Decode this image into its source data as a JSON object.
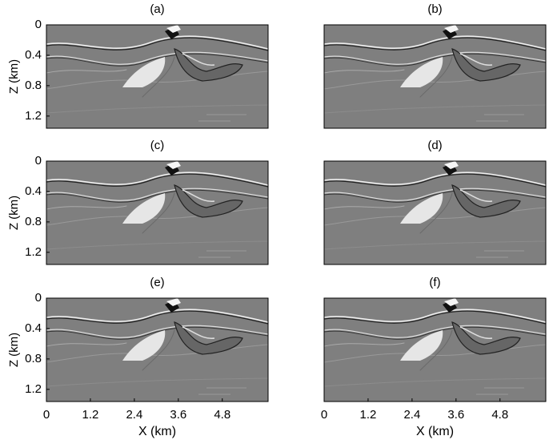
{
  "chart_data": [
    {
      "type": "image",
      "title": "(a)",
      "ylabel": "Z (km)",
      "ylim": [
        0,
        1.36
      ],
      "yticks": [
        0,
        0.4,
        0.8,
        1.2
      ]
    },
    {
      "type": "image",
      "title": "(b)"
    },
    {
      "type": "image",
      "title": "(c)",
      "ylabel": "Z (km)",
      "ylim": [
        0,
        1.36
      ],
      "yticks": [
        0,
        0.4,
        0.8,
        1.2
      ]
    },
    {
      "type": "image",
      "title": "(d)"
    },
    {
      "type": "image",
      "title": "(e)",
      "ylabel": "Z (km)",
      "ylim": [
        0,
        1.36
      ],
      "yticks": [
        0,
        0.4,
        0.8,
        1.2
      ],
      "xlabel": "X (km)",
      "xlim": [
        0,
        6.05
      ],
      "xticks": [
        0,
        1.2,
        2.4,
        3.6,
        4.8
      ]
    },
    {
      "type": "image",
      "title": "(f)",
      "xlabel": "X (km)",
      "xlim": [
        0,
        6.05
      ],
      "xticks": [
        0,
        1.2,
        2.4,
        3.6,
        4.8
      ]
    }
  ]
}
